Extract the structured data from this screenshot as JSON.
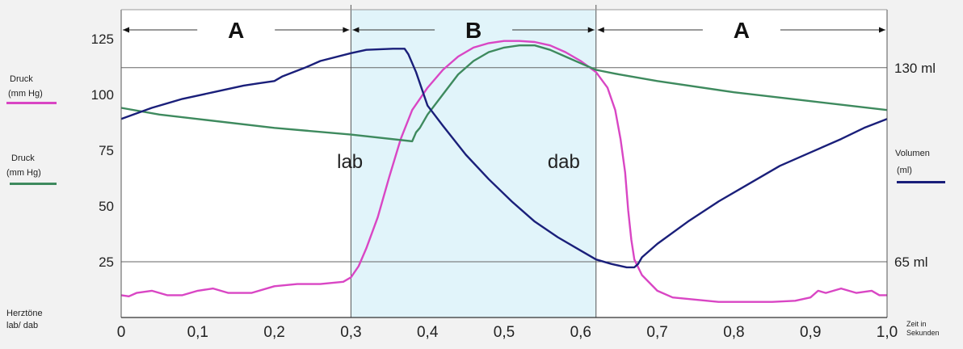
{
  "chart_data": {
    "type": "line",
    "x_tick_labels": [
      "0",
      "0,1",
      "0,2",
      "0,3",
      "0,4",
      "0,5",
      "0,6",
      "0,7",
      "0,8",
      "0,9",
      "1,0"
    ],
    "x_ticks": [
      0,
      0.1,
      0.2,
      0.3,
      0.4,
      0.5,
      0.6,
      0.7,
      0.8,
      0.9,
      1.0
    ],
    "xlabel": "Zeit in Sekunden",
    "xlim": [
      0,
      1.0
    ],
    "y_ticks": [
      25,
      50,
      75,
      100,
      125
    ],
    "ylim": [
      0,
      138
    ],
    "right_axis_labels": [
      {
        "text": "130 ml",
        "y": 112
      },
      {
        "text": "65 ml",
        "y": 25
      }
    ],
    "phases": [
      {
        "label": "A",
        "x_start": 0,
        "x_end": 0.3
      },
      {
        "label": "B",
        "x_start": 0.3,
        "x_end": 0.62
      },
      {
        "label": "A",
        "x_start": 0.62,
        "x_end": 1.0
      }
    ],
    "annotations": [
      {
        "text": "lab",
        "x": 0.305,
        "y": 67
      },
      {
        "text": "dab",
        "x": 0.58,
        "y": 67
      }
    ],
    "legend": {
      "pink_label": "Druck",
      "pink_unit": "(mm Hg)",
      "green_label": "Druck",
      "green_unit": "(mm Hg)",
      "blue_label": "Volumen",
      "blue_unit": "(ml)",
      "herz_label": "Herztöne",
      "herz_sub": "lab/ dab"
    },
    "colors": {
      "pink": "#d946c4",
      "green": "#3e8a5e",
      "blue": "#1a1f7a",
      "shade": "#e1f4fa",
      "grid": "#666666"
    },
    "series": [
      {
        "color_key": "pink",
        "points": [
          [
            0,
            10
          ],
          [
            0.01,
            9.5
          ],
          [
            0.02,
            11
          ],
          [
            0.04,
            12
          ],
          [
            0.06,
            10
          ],
          [
            0.08,
            10
          ],
          [
            0.1,
            12
          ],
          [
            0.12,
            13
          ],
          [
            0.14,
            11
          ],
          [
            0.17,
            11
          ],
          [
            0.2,
            14
          ],
          [
            0.23,
            15
          ],
          [
            0.26,
            15
          ],
          [
            0.29,
            16
          ],
          [
            0.3,
            18
          ],
          [
            0.31,
            23
          ],
          [
            0.32,
            31
          ],
          [
            0.335,
            45
          ],
          [
            0.35,
            63
          ],
          [
            0.365,
            80
          ],
          [
            0.38,
            93
          ],
          [
            0.4,
            103
          ],
          [
            0.42,
            111
          ],
          [
            0.44,
            117
          ],
          [
            0.46,
            121
          ],
          [
            0.48,
            123
          ],
          [
            0.5,
            124
          ],
          [
            0.52,
            124
          ],
          [
            0.54,
            123.5
          ],
          [
            0.56,
            122
          ],
          [
            0.58,
            119
          ],
          [
            0.6,
            115
          ],
          [
            0.62,
            110
          ],
          [
            0.635,
            103
          ],
          [
            0.645,
            93
          ],
          [
            0.652,
            80
          ],
          [
            0.658,
            65
          ],
          [
            0.662,
            48
          ],
          [
            0.666,
            35
          ],
          [
            0.67,
            26
          ],
          [
            0.68,
            19
          ],
          [
            0.7,
            12
          ],
          [
            0.72,
            9
          ],
          [
            0.75,
            8
          ],
          [
            0.78,
            7
          ],
          [
            0.8,
            7
          ],
          [
            0.85,
            7
          ],
          [
            0.88,
            7.5
          ],
          [
            0.9,
            9
          ],
          [
            0.91,
            12
          ],
          [
            0.92,
            11
          ],
          [
            0.94,
            13
          ],
          [
            0.96,
            11
          ],
          [
            0.98,
            12
          ],
          [
            0.99,
            10
          ],
          [
            1.0,
            10
          ]
        ]
      },
      {
        "color_key": "green",
        "points": [
          [
            0,
            94
          ],
          [
            0.05,
            91
          ],
          [
            0.1,
            89
          ],
          [
            0.2,
            85
          ],
          [
            0.3,
            82
          ],
          [
            0.38,
            79
          ],
          [
            0.385,
            83
          ],
          [
            0.39,
            85
          ],
          [
            0.4,
            91
          ],
          [
            0.42,
            100
          ],
          [
            0.44,
            109
          ],
          [
            0.46,
            115
          ],
          [
            0.48,
            119
          ],
          [
            0.5,
            121
          ],
          [
            0.52,
            122
          ],
          [
            0.54,
            122
          ],
          [
            0.56,
            120
          ],
          [
            0.58,
            117
          ],
          [
            0.6,
            114
          ],
          [
            0.62,
            111
          ],
          [
            0.65,
            109
          ],
          [
            0.7,
            106
          ],
          [
            0.8,
            101
          ],
          [
            0.9,
            97
          ],
          [
            1.0,
            93
          ]
        ]
      },
      {
        "color_key": "blue",
        "points": [
          [
            0,
            89
          ],
          [
            0.04,
            94
          ],
          [
            0.08,
            98
          ],
          [
            0.12,
            101
          ],
          [
            0.16,
            104
          ],
          [
            0.18,
            105
          ],
          [
            0.2,
            106
          ],
          [
            0.21,
            108
          ],
          [
            0.24,
            112
          ],
          [
            0.26,
            115
          ],
          [
            0.3,
            118.5
          ],
          [
            0.32,
            120
          ],
          [
            0.355,
            120.5
          ],
          [
            0.37,
            120.5
          ],
          [
            0.375,
            118
          ],
          [
            0.385,
            110
          ],
          [
            0.4,
            95
          ],
          [
            0.42,
            86
          ],
          [
            0.45,
            73
          ],
          [
            0.48,
            62
          ],
          [
            0.51,
            52
          ],
          [
            0.54,
            43
          ],
          [
            0.57,
            36
          ],
          [
            0.6,
            30
          ],
          [
            0.62,
            26
          ],
          [
            0.64,
            24
          ],
          [
            0.66,
            22.5
          ],
          [
            0.67,
            22.5
          ],
          [
            0.675,
            24
          ],
          [
            0.68,
            27
          ],
          [
            0.7,
            33
          ],
          [
            0.74,
            43
          ],
          [
            0.78,
            52
          ],
          [
            0.82,
            60
          ],
          [
            0.86,
            68
          ],
          [
            0.9,
            74
          ],
          [
            0.94,
            80
          ],
          [
            0.97,
            85
          ],
          [
            1.0,
            89
          ]
        ]
      }
    ]
  }
}
